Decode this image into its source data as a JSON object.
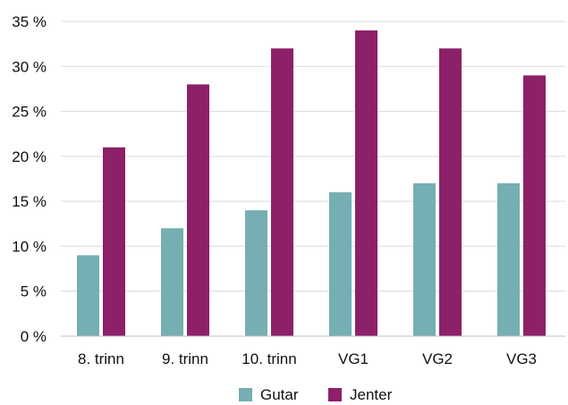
{
  "chart_data": {
    "type": "bar",
    "categories": [
      "8. trinn",
      "9. trinn",
      "10. trinn",
      "VG1",
      "VG2",
      "VG3"
    ],
    "series": [
      {
        "name": "Gutar",
        "values": [
          9,
          12,
          14,
          16,
          17,
          17
        ],
        "color": "#75aeb3"
      },
      {
        "name": "Jenter",
        "values": [
          21,
          28,
          32,
          34,
          32,
          29
        ],
        "color": "#8c2069"
      }
    ],
    "ylim": [
      0,
      35
    ],
    "yticks": [
      0,
      5,
      10,
      15,
      20,
      25,
      30,
      35
    ],
    "ytick_labels": [
      "0 %",
      "5 %",
      "10 %",
      "15 %",
      "20 %",
      "25 %",
      "30 %",
      "35 %"
    ],
    "title": "",
    "xlabel": "",
    "ylabel": "",
    "grid": true,
    "gridline_color": "#d9d9d9",
    "legend_position": "bottom-center"
  }
}
